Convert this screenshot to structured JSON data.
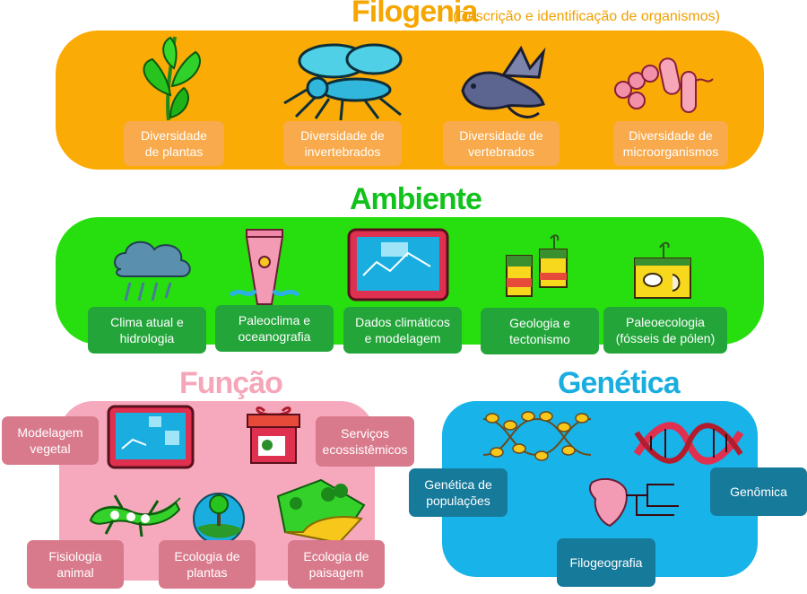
{
  "colors": {
    "filogenia_bg": "#fbab05",
    "filogenia_label_bg": "#f8aa4c",
    "filogenia_title": "#f7a600",
    "ambiente_bg": "#27df0e",
    "ambiente_label_bg": "#23a53a",
    "ambiente_title": "#12c21c",
    "funcao_bg": "#f6a9bd",
    "funcao_label_bg": "#d97a8c",
    "funcao_title": "#f5a7b9",
    "genetica_bg": "#18b3e8",
    "genetica_label_bg": "#167a9b",
    "genetica_title": "#1aaee0"
  },
  "filogenia": {
    "title": "Filogenia",
    "subtitle": "(Descrição e identificação de organismos)",
    "items": [
      {
        "label": "Diversidade\nde plantas",
        "icon": "plant-icon"
      },
      {
        "label": "Diversidade de\ninvertebrados",
        "icon": "mosquito-icon"
      },
      {
        "label": "Diversidade de\nvertebrados",
        "icon": "lizard-icon"
      },
      {
        "label": "Diversidade de\nmicroorganismos",
        "icon": "microbe-icon"
      }
    ]
  },
  "ambiente": {
    "title": "Ambiente",
    "items": [
      {
        "label": "Clima atual e\nhidrologia",
        "icon": "rain-cloud-icon"
      },
      {
        "label": "Paleoclima e\noceanografia",
        "icon": "ice-core-icon"
      },
      {
        "label": "Dados climáticos\ne modelagem",
        "icon": "monitor-icon"
      },
      {
        "label": "Geologia e\ntectonismo",
        "icon": "soil-layers-icon"
      },
      {
        "label": "Paleoecologia\n(fósseis de pólen)",
        "icon": "fossil-icon"
      }
    ]
  },
  "funcao": {
    "title": "Função",
    "items": [
      {
        "label": "Modelagem\nvegetal",
        "icon": "monitor-icon"
      },
      {
        "label": "Serviços\necossistêmicos",
        "icon": "gift-box-icon"
      },
      {
        "label": "Fisiologia\nanimal",
        "icon": "gecko-icon"
      },
      {
        "label": "Ecologia de\nplantas",
        "icon": "globe-tree-icon"
      },
      {
        "label": "Ecologia de\npaisagem",
        "icon": "landscape-icon"
      }
    ]
  },
  "genetica": {
    "title": "Genética",
    "items": [
      {
        "label": "Genética de\npopulações",
        "icon": "bird-dna-icon"
      },
      {
        "label": "Genômica",
        "icon": "dna-icon"
      },
      {
        "label": "Filogeografia",
        "icon": "map-tree-icon"
      }
    ]
  }
}
